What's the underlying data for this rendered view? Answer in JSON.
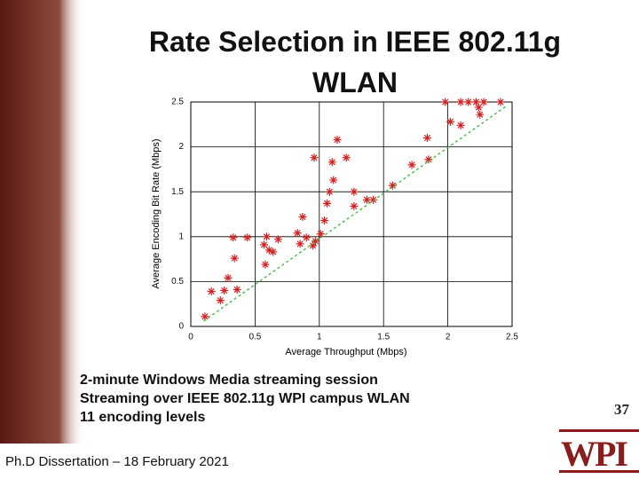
{
  "chart_data": {
    "type": "scatter",
    "title": "Rate Selection in IEEE 802.11g WLAN",
    "xlabel": "Average Throughput (Mbps)",
    "ylabel": "Average Encoding Bit Rate (Mbps)",
    "xlim": [
      0,
      2.5
    ],
    "ylim": [
      0,
      2.5
    ],
    "xticks": [
      0,
      0.5,
      1,
      1.5,
      2,
      2.5
    ],
    "yticks": [
      0,
      0.5,
      1,
      1.5,
      2,
      2.5
    ],
    "grid": true,
    "series": [
      {
        "color": "#d42020",
        "marker": "star",
        "x": [
          0.11,
          0.16,
          0.23,
          0.26,
          0.29,
          0.36,
          0.34,
          0.33,
          0.44,
          0.57,
          0.59,
          0.61,
          0.64,
          0.58,
          0.68,
          0.83,
          0.85,
          0.9,
          0.95,
          0.97,
          0.87,
          1.01,
          1.04,
          1.06,
          1.08,
          1.11,
          0.96,
          1.1,
          1.14,
          1.21,
          1.27,
          1.27,
          1.37,
          1.42,
          1.57,
          1.72,
          1.85,
          1.84,
          2.02,
          2.1,
          1.98,
          2.1,
          2.16,
          2.22,
          2.24,
          2.25,
          2.28,
          2.41
        ],
        "values": [
          0.11,
          0.39,
          0.29,
          0.4,
          0.54,
          0.41,
          0.76,
          0.99,
          0.99,
          0.91,
          1.0,
          0.85,
          0.83,
          0.69,
          0.97,
          1.04,
          0.92,
          0.99,
          0.9,
          0.95,
          1.22,
          1.03,
          1.18,
          1.37,
          1.5,
          1.63,
          1.88,
          1.83,
          2.08,
          1.88,
          1.34,
          1.5,
          1.41,
          1.41,
          1.57,
          1.8,
          1.86,
          2.1,
          2.28,
          2.24,
          2.5,
          2.5,
          2.5,
          2.5,
          2.44,
          2.36,
          2.5,
          2.5
        ]
      },
      {
        "color": "#33bb33",
        "marker": "dashed-line",
        "x": [
          0.1,
          2.45
        ],
        "values": [
          0.06,
          2.45
        ]
      }
    ]
  },
  "slide": {
    "bullets": [
      "2-minute Windows Media streaming session",
      "Streaming over IEEE 802.11g WPI campus WLAN",
      "11 encoding levels"
    ],
    "footer": "Ph.D Dissertation – 18 February 2021",
    "page_number": "37",
    "logo": "WPI"
  }
}
